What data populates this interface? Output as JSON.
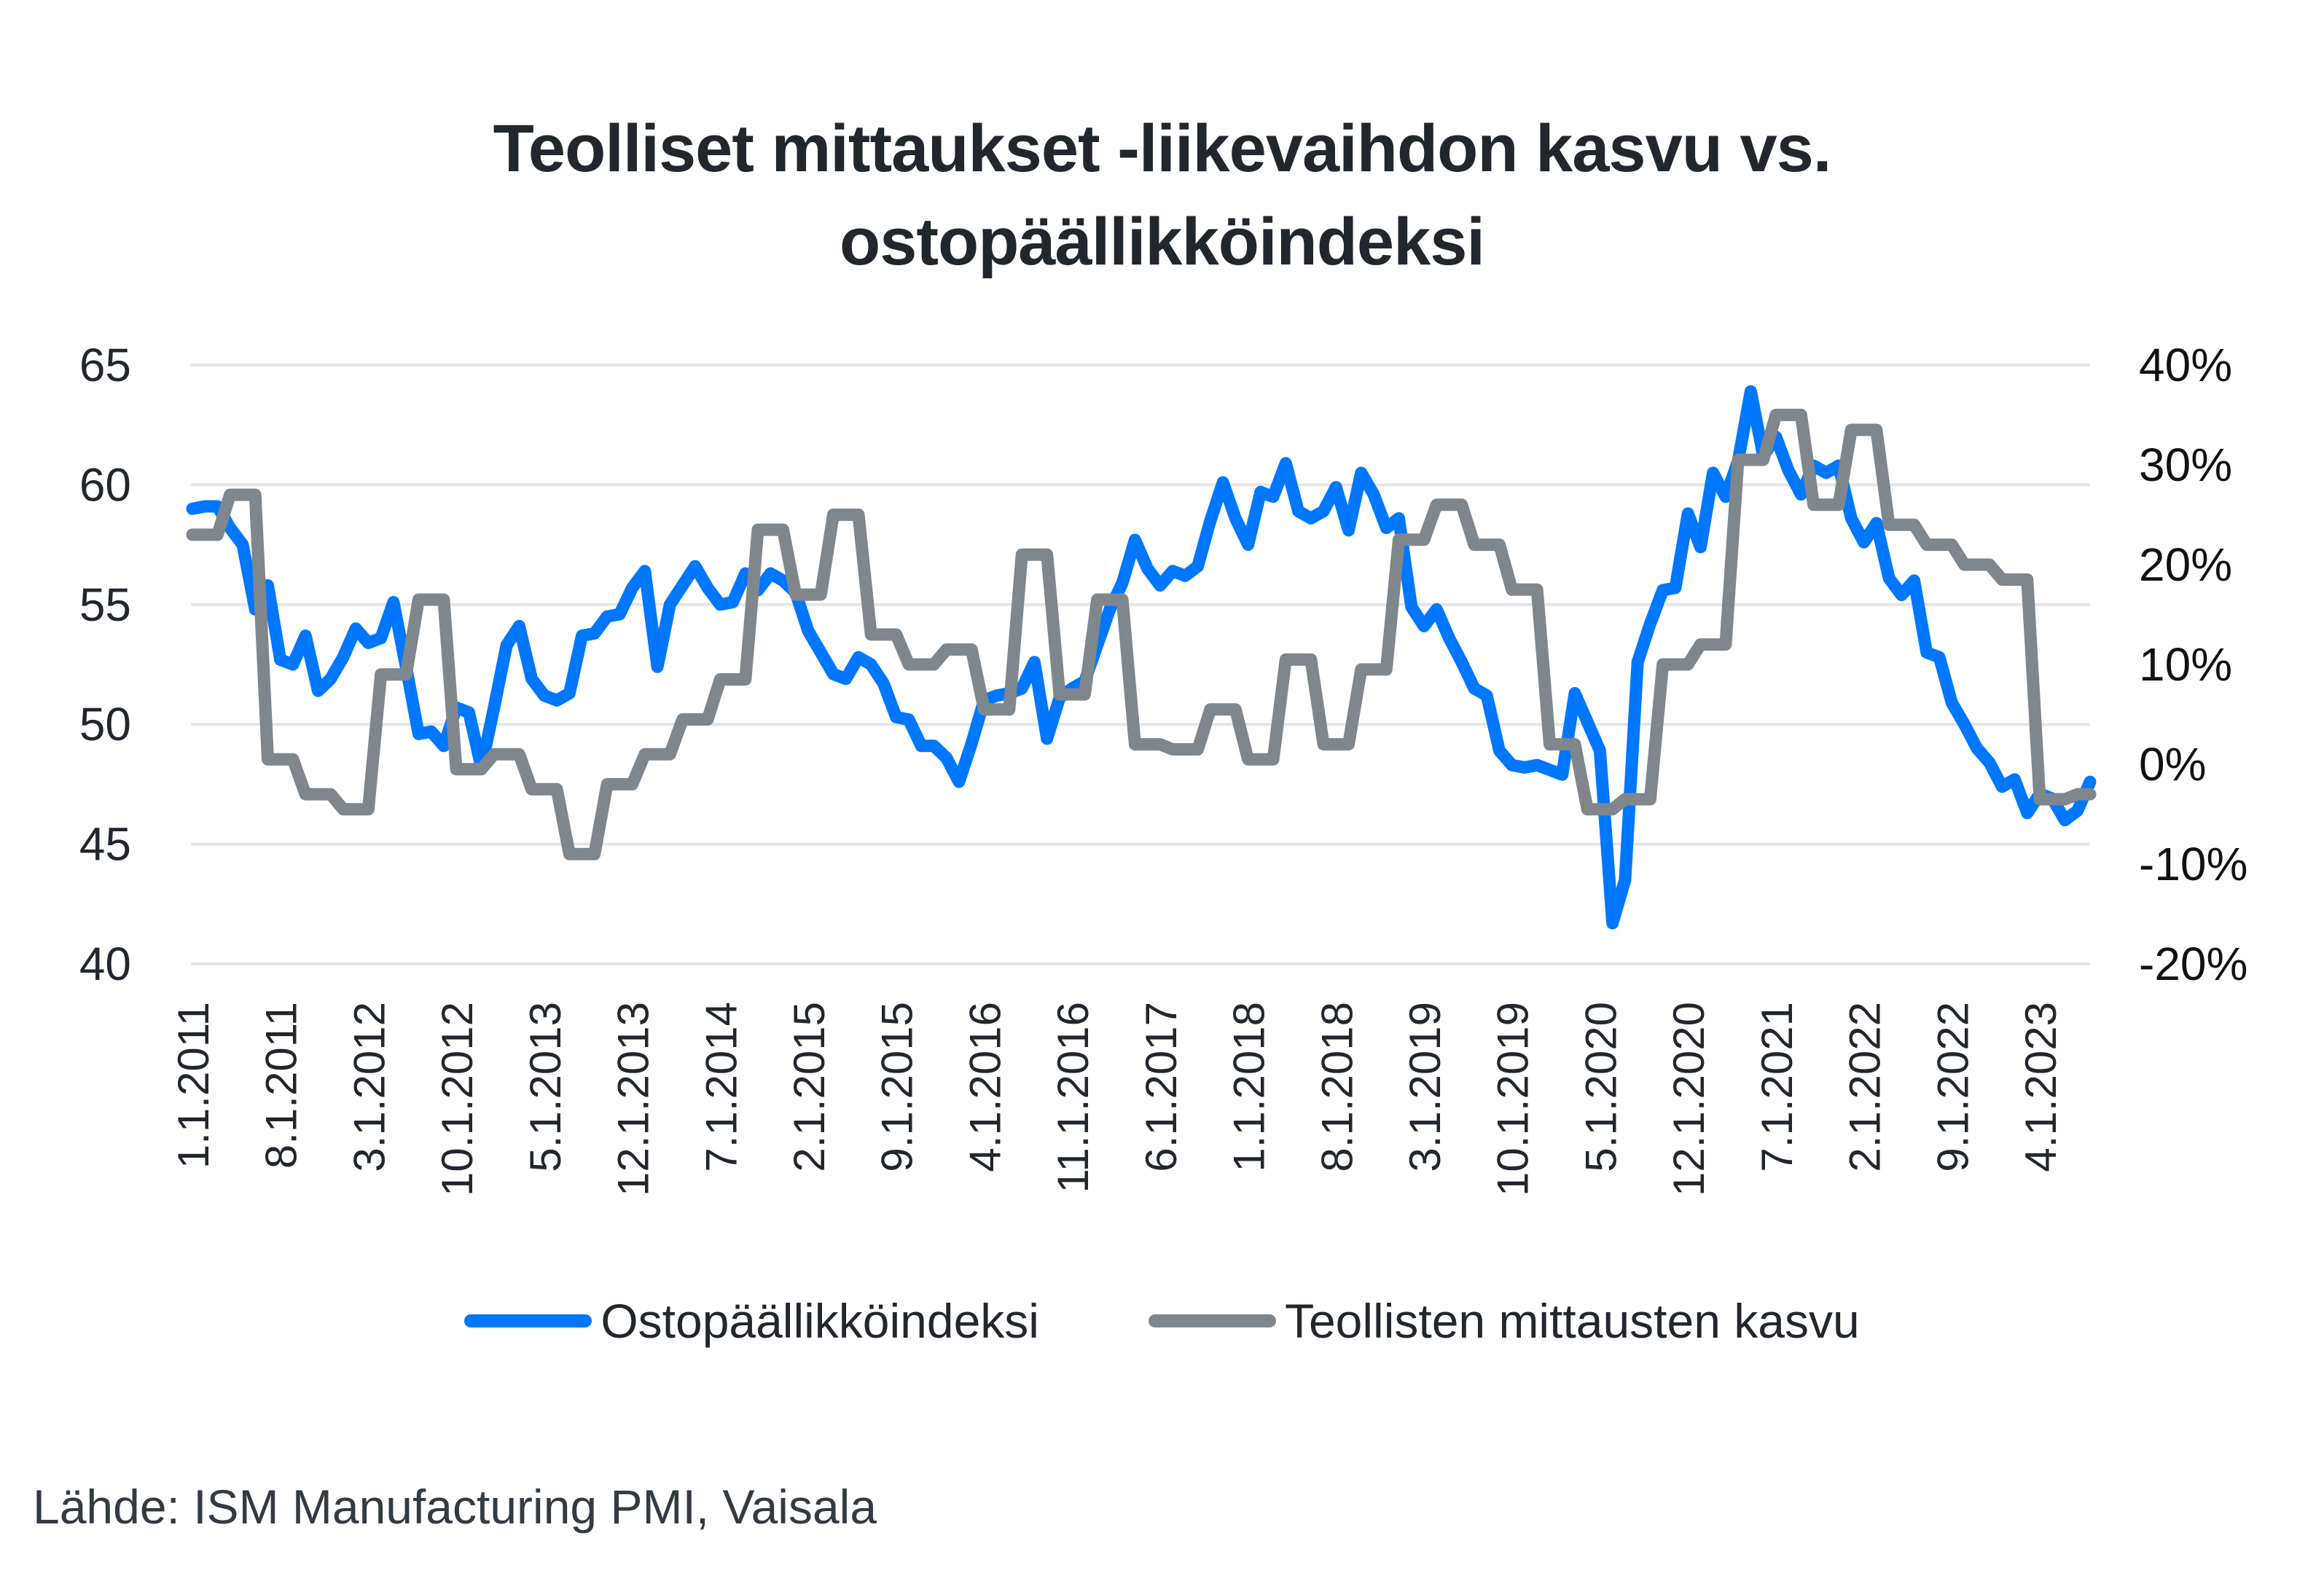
{
  "chart_data": {
    "type": "line",
    "title": "Teolliset mittaukset -liikevaihdon kasvu vs. ostopäällikköindeksi",
    "title_lines": [
      "Teolliset mittaukset -liikevaihdon kasvu vs.",
      "ostopäällikköindeksi"
    ],
    "xlabel": "",
    "ylabel": "",
    "x_start": "1.1.2011",
    "x_frequency": "monthly",
    "x_count": 152,
    "x_tick_labels": [
      "1.1.2011",
      "8.1.2011",
      "3.1.2012",
      "10.1.2012",
      "5.1.2013",
      "12.1.2013",
      "7.1.2014",
      "2.1.2015",
      "9.1.2015",
      "4.1.2016",
      "11.1.2016",
      "6.1.2017",
      "1.1.2018",
      "8.1.2018",
      "3.1.2019",
      "10.1.2019",
      "5.1.2020",
      "12.1.2020",
      "7.1.2021",
      "2.1.2022",
      "9.1.2022",
      "4.1.2023"
    ],
    "x_tick_every_months": 7,
    "y_left": {
      "ylim": [
        40,
        65
      ],
      "ticks": [
        "40",
        "45",
        "50",
        "55",
        "60",
        "65"
      ]
    },
    "y_right": {
      "ylim": [
        -20,
        40
      ],
      "ticks": [
        "-20%",
        "-10%",
        "0%",
        "10%",
        "20%",
        "30%",
        "40%"
      ]
    },
    "grid": true,
    "legend_position": "bottom",
    "series": [
      {
        "name": "Ostopäällikköindeksi",
        "axis": "left",
        "color": "#0077ff",
        "values": [
          59.0,
          59.1,
          59.1,
          58.2,
          57.5,
          54.8,
          55.8,
          52.7,
          52.5,
          53.7,
          51.4,
          51.9,
          52.8,
          54.0,
          53.4,
          53.6,
          55.1,
          52.4,
          49.6,
          49.7,
          49.1,
          50.7,
          50.5,
          48.2,
          50.7,
          53.3,
          54.1,
          51.9,
          51.2,
          51.0,
          51.3,
          53.7,
          53.8,
          54.5,
          54.6,
          55.7,
          56.4,
          52.4,
          55.0,
          55.8,
          56.6,
          55.7,
          55.0,
          55.1,
          56.3,
          55.6,
          56.3,
          56.0,
          55.5,
          53.9,
          53.0,
          52.1,
          51.9,
          52.8,
          52.5,
          51.7,
          50.3,
          50.2,
          49.1,
          49.1,
          48.6,
          47.6,
          49.2,
          51.0,
          51.2,
          51.3,
          51.5,
          52.6,
          49.4,
          51.1,
          51.5,
          51.8,
          53.3,
          54.8,
          55.9,
          57.7,
          56.5,
          55.8,
          56.4,
          56.2,
          56.6,
          58.5,
          60.1,
          58.6,
          57.5,
          59.7,
          59.5,
          60.9,
          58.9,
          58.6,
          58.9,
          59.9,
          58.1,
          60.5,
          59.6,
          58.2,
          58.6,
          54.9,
          54.1,
          54.8,
          53.6,
          52.6,
          51.5,
          51.2,
          48.9,
          48.3,
          48.2,
          48.3,
          48.1,
          47.9,
          51.3,
          50.1,
          48.9,
          41.7,
          43.5,
          52.6,
          54.2,
          55.6,
          55.7,
          58.8,
          57.4,
          60.5,
          59.5,
          61.0,
          63.9,
          61.2,
          62.0,
          60.6,
          59.6,
          60.8,
          60.5,
          60.8,
          58.6,
          57.6,
          58.4,
          56.1,
          55.4,
          56.0,
          53.0,
          52.8,
          50.9,
          50.0,
          49.0,
          48.4,
          47.4,
          47.7,
          46.3,
          47.1,
          46.9,
          46.0,
          46.4,
          47.6
        ]
      },
      {
        "name": "Teollisten mittausten kasvu",
        "axis": "right",
        "unit": "%",
        "color": "#7f878d",
        "values": [
          23,
          23,
          23,
          27,
          27,
          27,
          0.5,
          0.5,
          0.5,
          -3,
          -3,
          -3,
          -4.5,
          -4.5,
          -4.5,
          9,
          9,
          9,
          16.5,
          16.5,
          16.5,
          -0.5,
          -0.5,
          -0.5,
          1,
          1,
          1,
          -2.5,
          -2.5,
          -2.5,
          -9,
          -9,
          -9,
          -2,
          -2,
          -2,
          1,
          1,
          1,
          4.5,
          4.5,
          4.5,
          8.5,
          8.5,
          8.5,
          23.5,
          23.5,
          23.5,
          17,
          17,
          17,
          25,
          25,
          25,
          13,
          13,
          13,
          10,
          10,
          10,
          11.5,
          11.5,
          11.5,
          5.5,
          5.5,
          5.5,
          21,
          21,
          21,
          7,
          7,
          7,
          16.5,
          16.5,
          16.5,
          2,
          2,
          2,
          1.5,
          1.5,
          1.5,
          5.5,
          5.5,
          5.5,
          0.5,
          0.5,
          0.5,
          10.5,
          10.5,
          10.5,
          2,
          2,
          2,
          9.5,
          9.5,
          9.5,
          22.5,
          22.5,
          22.5,
          26,
          26,
          26,
          22,
          22,
          22,
          17.5,
          17.5,
          17.5,
          2,
          2,
          2,
          -4.5,
          -4.5,
          -4.5,
          -3.5,
          -3.5,
          -3.5,
          10,
          10,
          10,
          12,
          12,
          12,
          30.5,
          30.5,
          30.5,
          35,
          35,
          35,
          26,
          26,
          26,
          33.5,
          33.5,
          33.5,
          24,
          24,
          24,
          22,
          22,
          22,
          20,
          20,
          20,
          18.5,
          18.5,
          18.5,
          -3.5,
          -3.5,
          -3.5,
          -3,
          -3
        ]
      }
    ]
  },
  "legend": {
    "items": [
      {
        "label": "Ostopäällikköindeksi",
        "color": "#0077ff"
      },
      {
        "label": "Teollisten mittausten kasvu",
        "color": "#7f878d"
      }
    ]
  },
  "source": "Lähde: ISM Manufacturing PMI, Vaisala",
  "colors": {
    "grid": "#e3e5e8",
    "text": "#22272e"
  }
}
